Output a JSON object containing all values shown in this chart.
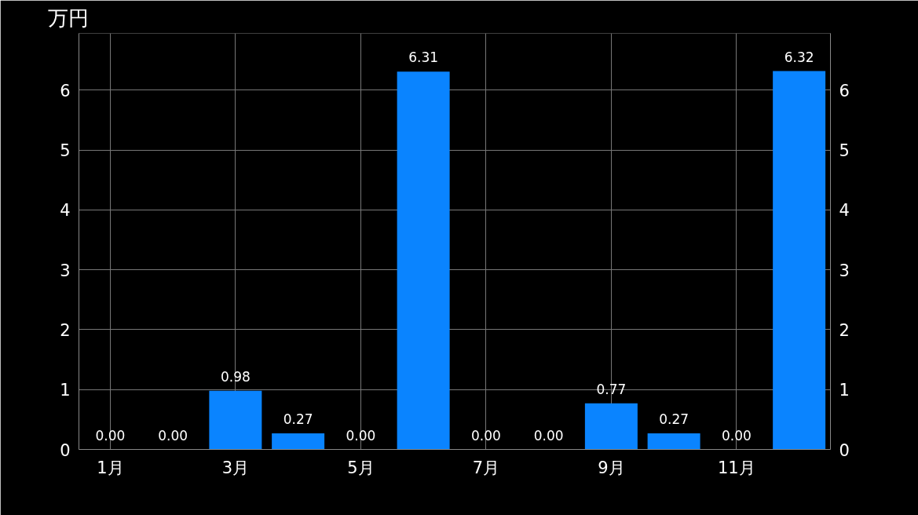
{
  "chart_data": {
    "type": "bar",
    "ylabel": "万円",
    "categories": [
      "1月",
      null,
      "3月",
      null,
      "5月",
      null,
      "7月",
      null,
      "9月",
      null,
      "11月",
      null
    ],
    "series": [
      {
        "color": "#0a84ff",
        "values": [
          0,
          0,
          0.98,
          0.27,
          0,
          6.31,
          0,
          0,
          0.77,
          0.27,
          0,
          6.32
        ],
        "value_labels": [
          "0.00",
          "0.00",
          "0.98",
          "0.27",
          "0.00",
          "6.31",
          "0.00",
          "0.00",
          "0.77",
          "0.27",
          "0.00",
          "6.32"
        ]
      }
    ],
    "ylim": [
      0,
      6.95
    ],
    "yticks": [
      0,
      1,
      2,
      3,
      4,
      5,
      6
    ],
    "y2lim": [
      0,
      6.95
    ],
    "y2ticks": [
      0,
      1,
      2,
      3,
      4,
      5,
      6
    ],
    "grid": true
  }
}
